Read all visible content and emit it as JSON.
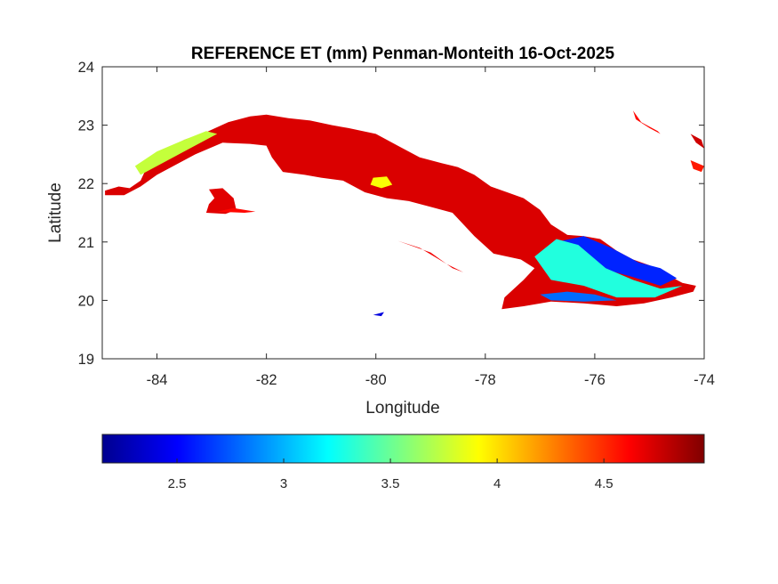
{
  "title": "REFERENCE ET (mm) Penman-Monteith 16-Oct-2025",
  "xlabel": "Longitude",
  "ylabel": "Latitude",
  "xlim": [
    -85,
    -74
  ],
  "ylim": [
    19,
    24
  ],
  "xticks": [
    {
      "value": -84,
      "label": "-84"
    },
    {
      "value": -82,
      "label": "-82"
    },
    {
      "value": -80,
      "label": "-80"
    },
    {
      "value": -78,
      "label": "-78"
    },
    {
      "value": -76,
      "label": "-76"
    },
    {
      "value": -74,
      "label": "-74"
    }
  ],
  "yticks": [
    {
      "value": 19,
      "label": "19"
    },
    {
      "value": 20,
      "label": "20"
    },
    {
      "value": 21,
      "label": "21"
    },
    {
      "value": 22,
      "label": "22"
    },
    {
      "value": 23,
      "label": "23"
    },
    {
      "value": 24,
      "label": "24"
    }
  ],
  "colorbar": {
    "colormap": "jet",
    "range": [
      2.15,
      4.97
    ],
    "placement": "below",
    "ticks": [
      {
        "value": 2.5,
        "label": "2.5"
      },
      {
        "value": 3,
        "label": "3"
      },
      {
        "value": 3.5,
        "label": "3.5"
      },
      {
        "value": 4,
        "label": "4"
      },
      {
        "value": 4.5,
        "label": "4.5"
      }
    ]
  },
  "regions": [
    {
      "name": "main-island",
      "polygon": [
        [
          -84.95,
          21.88
        ],
        [
          -84.7,
          21.95
        ],
        [
          -84.5,
          21.92
        ],
        [
          -84.3,
          22.05
        ],
        [
          -84.15,
          22.35
        ],
        [
          -83.9,
          22.55
        ],
        [
          -83.5,
          22.75
        ],
        [
          -83.1,
          22.88
        ],
        [
          -82.7,
          23.05
        ],
        [
          -82.3,
          23.15
        ],
        [
          -82.0,
          23.18
        ],
        [
          -81.6,
          23.12
        ],
        [
          -81.2,
          23.08
        ],
        [
          -80.8,
          23.0
        ],
        [
          -80.5,
          22.95
        ],
        [
          -80.0,
          22.85
        ],
        [
          -79.6,
          22.65
        ],
        [
          -79.2,
          22.45
        ],
        [
          -78.8,
          22.35
        ],
        [
          -78.5,
          22.28
        ],
        [
          -78.2,
          22.15
        ],
        [
          -77.9,
          21.95
        ],
        [
          -77.6,
          21.85
        ],
        [
          -77.3,
          21.75
        ],
        [
          -77.0,
          21.55
        ],
        [
          -76.8,
          21.3
        ],
        [
          -76.5,
          21.12
        ],
        [
          -76.2,
          21.1
        ],
        [
          -75.9,
          21.05
        ],
        [
          -75.6,
          20.85
        ],
        [
          -75.3,
          20.7
        ],
        [
          -75.0,
          20.6
        ],
        [
          -74.7,
          20.45
        ],
        [
          -74.4,
          20.3
        ],
        [
          -74.15,
          20.25
        ],
        [
          -74.2,
          20.15
        ],
        [
          -74.6,
          20.05
        ],
        [
          -75.1,
          19.95
        ],
        [
          -75.6,
          19.9
        ],
        [
          -76.2,
          19.95
        ],
        [
          -76.8,
          19.98
        ],
        [
          -77.3,
          19.9
        ],
        [
          -77.7,
          19.85
        ],
        [
          -77.65,
          20.05
        ],
        [
          -77.3,
          20.35
        ],
        [
          -77.1,
          20.55
        ],
        [
          -77.35,
          20.7
        ],
        [
          -77.85,
          20.8
        ],
        [
          -78.2,
          21.1
        ],
        [
          -78.6,
          21.5
        ],
        [
          -79.0,
          21.6
        ],
        [
          -79.4,
          21.7
        ],
        [
          -79.8,
          21.75
        ],
        [
          -80.2,
          21.85
        ],
        [
          -80.6,
          22.05
        ],
        [
          -81.0,
          22.1
        ],
        [
          -81.3,
          22.15
        ],
        [
          -81.7,
          22.2
        ],
        [
          -81.9,
          22.45
        ],
        [
          -82.0,
          22.65
        ],
        [
          -82.3,
          22.68
        ],
        [
          -82.8,
          22.7
        ],
        [
          -83.3,
          22.5
        ],
        [
          -83.7,
          22.3
        ],
        [
          -84.0,
          22.15
        ],
        [
          -84.3,
          21.95
        ],
        [
          -84.6,
          21.8
        ],
        [
          -84.95,
          21.8
        ]
      ],
      "value": 4.72
    },
    {
      "name": "isla-de-la-juventud",
      "polygon": [
        [
          -83.05,
          21.9
        ],
        [
          -82.8,
          21.92
        ],
        [
          -82.6,
          21.75
        ],
        [
          -82.55,
          21.55
        ],
        [
          -82.75,
          21.48
        ],
        [
          -83.1,
          21.5
        ],
        [
          -83.05,
          21.65
        ],
        [
          -82.95,
          21.75
        ]
      ],
      "value": 4.7
    },
    {
      "name": "east-island-1",
      "polygon": [
        [
          -75.3,
          23.25
        ],
        [
          -75.15,
          23.05
        ],
        [
          -74.85,
          22.9
        ],
        [
          -74.8,
          22.85
        ],
        [
          -75.0,
          22.95
        ],
        [
          -75.25,
          23.1
        ]
      ],
      "value": 4.6
    },
    {
      "name": "east-island-2",
      "polygon": [
        [
          -74.25,
          22.85
        ],
        [
          -74.05,
          22.75
        ],
        [
          -74.0,
          22.6
        ],
        [
          -74.15,
          22.7
        ]
      ],
      "value": 4.75
    },
    {
      "name": "east-island-3",
      "polygon": [
        [
          -74.25,
          22.4
        ],
        [
          -74.0,
          22.3
        ],
        [
          -74.05,
          22.2
        ],
        [
          -74.2,
          22.25
        ]
      ],
      "value": 4.55
    },
    {
      "name": "coastal-strip",
      "polygon": [
        [
          -82.6,
          21.58
        ],
        [
          -82.9,
          21.52
        ],
        [
          -82.4,
          21.5
        ],
        [
          -82.2,
          21.52
        ]
      ],
      "value": 4.6
    },
    {
      "name": "south-keys",
      "polygon": [
        [
          -79.6,
          21.02
        ],
        [
          -79.0,
          20.82
        ],
        [
          -78.6,
          20.55
        ],
        [
          -78.4,
          20.48
        ],
        [
          -78.7,
          20.62
        ],
        [
          -79.2,
          20.9
        ]
      ],
      "value": 4.65
    }
  ],
  "anomalies": [
    {
      "name": "eastern-low-et",
      "polygon": [
        [
          -76.7,
          21.0
        ],
        [
          -76.2,
          21.1
        ],
        [
          -75.7,
          20.9
        ],
        [
          -75.2,
          20.65
        ],
        [
          -74.8,
          20.55
        ],
        [
          -74.5,
          20.38
        ],
        [
          -74.8,
          20.25
        ],
        [
          -75.3,
          20.4
        ],
        [
          -75.9,
          20.55
        ],
        [
          -76.4,
          20.6
        ],
        [
          -76.8,
          20.75
        ]
      ],
      "value": 2.6
    },
    {
      "name": "eastern-mid-et",
      "polygon": [
        [
          -77.1,
          20.75
        ],
        [
          -76.7,
          21.05
        ],
        [
          -76.3,
          20.95
        ],
        [
          -75.8,
          20.55
        ],
        [
          -75.3,
          20.35
        ],
        [
          -74.8,
          20.2
        ],
        [
          -74.4,
          20.25
        ],
        [
          -74.9,
          20.05
        ],
        [
          -75.6,
          20.05
        ],
        [
          -76.2,
          20.25
        ],
        [
          -76.8,
          20.35
        ]
      ],
      "value": 3.3
    },
    {
      "name": "south-coast-strip",
      "polygon": [
        [
          -77.0,
          20.1
        ],
        [
          -76.5,
          20.15
        ],
        [
          -76.0,
          20.1
        ],
        [
          -75.6,
          20.0
        ],
        [
          -76.2,
          19.98
        ],
        [
          -76.8,
          20.0
        ]
      ],
      "value": 2.8
    },
    {
      "name": "western-ridge",
      "polygon": [
        [
          -84.4,
          22.3
        ],
        [
          -84.0,
          22.55
        ],
        [
          -83.5,
          22.75
        ],
        [
          -83.1,
          22.9
        ],
        [
          -82.9,
          22.85
        ],
        [
          -83.4,
          22.6
        ],
        [
          -83.9,
          22.35
        ],
        [
          -84.3,
          22.15
        ]
      ],
      "value": 3.75
    },
    {
      "name": "central-spot",
      "polygon": [
        [
          -80.05,
          22.1
        ],
        [
          -79.8,
          22.12
        ],
        [
          -79.7,
          21.98
        ],
        [
          -79.9,
          21.92
        ],
        [
          -80.1,
          21.98
        ]
      ],
      "value": 3.9
    }
  ],
  "small_features": [
    {
      "name": "south-islet",
      "polygon": [
        [
          -80.05,
          19.75
        ],
        [
          -79.85,
          19.8
        ],
        [
          -79.9,
          19.73
        ]
      ],
      "value": 2.4
    }
  ]
}
